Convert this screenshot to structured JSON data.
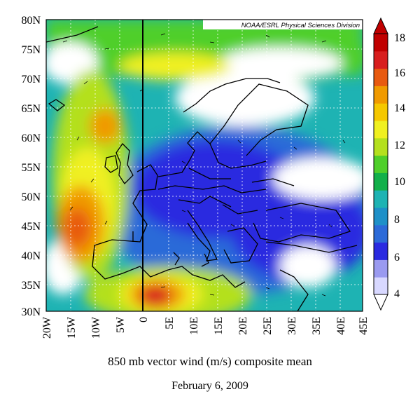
{
  "map": {
    "credit": "NOAA/ESRL Physical Sciences Division",
    "lat_labels": [
      "80N",
      "75N",
      "70N",
      "65N",
      "60N",
      "55N",
      "50N",
      "45N",
      "40N",
      "35N",
      "30N"
    ],
    "lon_labels": [
      "20W",
      "15W",
      "10W",
      "5W",
      "0",
      "5E",
      "10E",
      "15E",
      "20E",
      "25E",
      "30E",
      "35E",
      "40E",
      "45E"
    ],
    "colorbar": {
      "ticks": [
        "18",
        "16",
        "14",
        "12",
        "10",
        "8",
        "6",
        "4"
      ],
      "colors": [
        "#d8d8ff",
        "#9a9af0",
        "#2a2ae0",
        "#2c6ad8",
        "#1e90c8",
        "#1eb3b3",
        "#12b04a",
        "#4fcf2a",
        "#b4e01e",
        "#f0f020",
        "#f5c800",
        "#f09a00",
        "#e85a10",
        "#d81e1e",
        "#c00000"
      ]
    },
    "caption": "850 mb vector wind (m/s) composite mean",
    "date": "February 6, 2009"
  }
}
